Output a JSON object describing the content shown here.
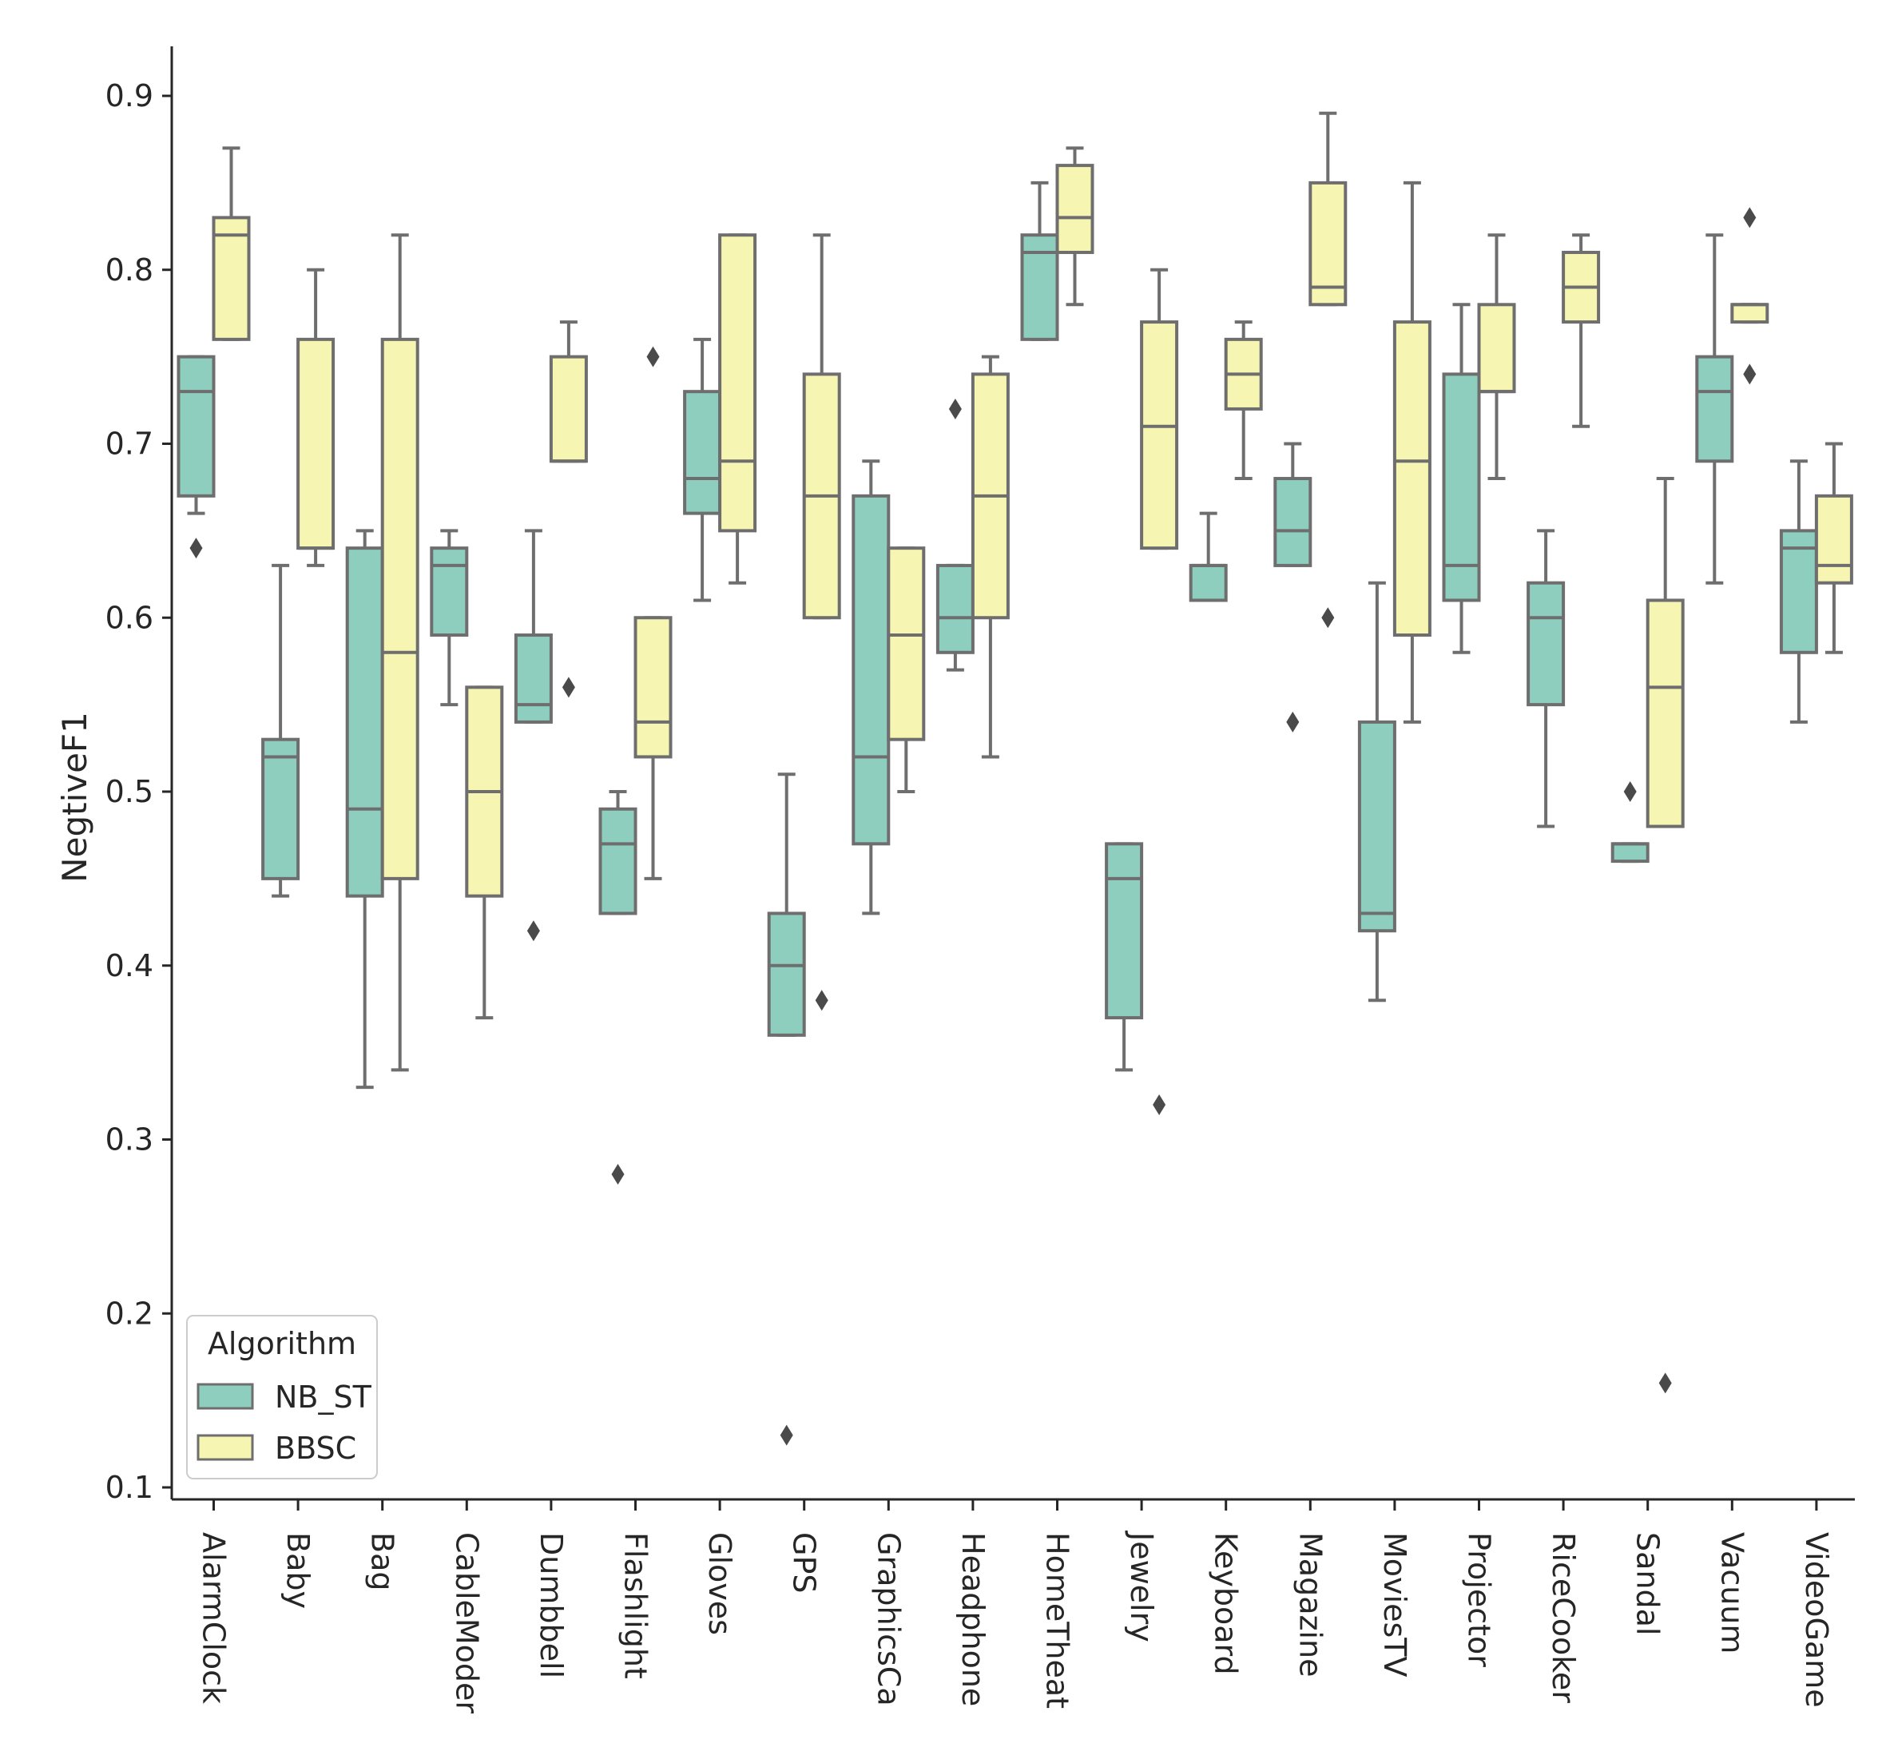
{
  "chart_data": {
    "type": "boxplot",
    "title": "",
    "xlabel": "",
    "ylabel": "NegtiveF1",
    "ylim": [
      0.09,
      0.93
    ],
    "yticks": [
      0.1,
      0.2,
      0.3,
      0.4,
      0.5,
      0.6,
      0.7,
      0.8,
      0.9
    ],
    "ytick_labels": [
      "0.1",
      "0.2",
      "0.3",
      "0.4",
      "0.5",
      "0.6",
      "0.7",
      "0.8",
      "0.9"
    ],
    "categories": [
      "AlarmClock",
      "Baby",
      "Bag",
      "CableModer",
      "Dumbbell",
      "Flashlight",
      "Gloves",
      "GPS",
      "GraphicsCa",
      "Headphone",
      "HomeTheat",
      "Jewelry",
      "Keyboard",
      "Magazine",
      "MoviesTV",
      "Projector",
      "RiceCooker",
      "Sandal",
      "Vacuum",
      "VideoGame"
    ],
    "legend": {
      "title": "Algorithm",
      "position": "lower-left"
    },
    "series": [
      {
        "name": "NB_ST",
        "color": "#8dcebf",
        "boxes": [
          {
            "whislo": 0.66,
            "q1": 0.67,
            "med": 0.73,
            "q3": 0.75,
            "whishi": 0.75,
            "fliers": [
              0.64
            ]
          },
          {
            "whislo": 0.44,
            "q1": 0.45,
            "med": 0.52,
            "q3": 0.53,
            "whishi": 0.63,
            "fliers": []
          },
          {
            "whislo": 0.33,
            "q1": 0.44,
            "med": 0.49,
            "q3": 0.64,
            "whishi": 0.65,
            "fliers": []
          },
          {
            "whislo": 0.55,
            "q1": 0.59,
            "med": 0.63,
            "q3": 0.64,
            "whishi": 0.65,
            "fliers": []
          },
          {
            "whislo": 0.54,
            "q1": 0.54,
            "med": 0.55,
            "q3": 0.59,
            "whishi": 0.65,
            "fliers": [
              0.42
            ]
          },
          {
            "whislo": 0.43,
            "q1": 0.43,
            "med": 0.47,
            "q3": 0.49,
            "whishi": 0.5,
            "fliers": [
              0.28
            ]
          },
          {
            "whislo": 0.61,
            "q1": 0.66,
            "med": 0.68,
            "q3": 0.73,
            "whishi": 0.76,
            "fliers": []
          },
          {
            "whislo": 0.36,
            "q1": 0.36,
            "med": 0.4,
            "q3": 0.43,
            "whishi": 0.51,
            "fliers": [
              0.13
            ]
          },
          {
            "whislo": 0.43,
            "q1": 0.47,
            "med": 0.52,
            "q3": 0.67,
            "whishi": 0.69,
            "fliers": []
          },
          {
            "whislo": 0.57,
            "q1": 0.58,
            "med": 0.6,
            "q3": 0.63,
            "whishi": 0.63,
            "fliers": [
              0.72
            ]
          },
          {
            "whislo": 0.76,
            "q1": 0.76,
            "med": 0.81,
            "q3": 0.82,
            "whishi": 0.85,
            "fliers": []
          },
          {
            "whislo": 0.34,
            "q1": 0.37,
            "med": 0.45,
            "q3": 0.47,
            "whishi": 0.47,
            "fliers": []
          },
          {
            "whislo": 0.61,
            "q1": 0.61,
            "med": 0.63,
            "q3": 0.63,
            "whishi": 0.66,
            "fliers": []
          },
          {
            "whislo": 0.63,
            "q1": 0.63,
            "med": 0.65,
            "q3": 0.68,
            "whishi": 0.7,
            "fliers": [
              0.54
            ]
          },
          {
            "whislo": 0.38,
            "q1": 0.42,
            "med": 0.43,
            "q3": 0.54,
            "whishi": 0.62,
            "fliers": []
          },
          {
            "whislo": 0.58,
            "q1": 0.61,
            "med": 0.63,
            "q3": 0.74,
            "whishi": 0.78,
            "fliers": []
          },
          {
            "whislo": 0.48,
            "q1": 0.55,
            "med": 0.6,
            "q3": 0.62,
            "whishi": 0.65,
            "fliers": []
          },
          {
            "whislo": 0.46,
            "q1": 0.46,
            "med": 0.47,
            "q3": 0.47,
            "whishi": 0.47,
            "fliers": [
              0.5
            ]
          },
          {
            "whislo": 0.62,
            "q1": 0.69,
            "med": 0.73,
            "q3": 0.75,
            "whishi": 0.82,
            "fliers": []
          },
          {
            "whislo": 0.54,
            "q1": 0.58,
            "med": 0.64,
            "q3": 0.65,
            "whishi": 0.69,
            "fliers": []
          }
        ]
      },
      {
        "name": "BBSC",
        "color": "#f7f5b2",
        "boxes": [
          {
            "whislo": 0.76,
            "q1": 0.76,
            "med": 0.82,
            "q3": 0.83,
            "whishi": 0.87,
            "fliers": []
          },
          {
            "whislo": 0.63,
            "q1": 0.64,
            "med": 0.64,
            "q3": 0.76,
            "whishi": 0.8,
            "fliers": []
          },
          {
            "whislo": 0.34,
            "q1": 0.45,
            "med": 0.58,
            "q3": 0.76,
            "whishi": 0.82,
            "fliers": []
          },
          {
            "whislo": 0.37,
            "q1": 0.44,
            "med": 0.5,
            "q3": 0.56,
            "whishi": 0.56,
            "fliers": []
          },
          {
            "whislo": 0.69,
            "q1": 0.69,
            "med": 0.69,
            "q3": 0.75,
            "whishi": 0.77,
            "fliers": [
              0.56
            ]
          },
          {
            "whislo": 0.45,
            "q1": 0.52,
            "med": 0.54,
            "q3": 0.6,
            "whishi": 0.6,
            "fliers": [
              0.75
            ]
          },
          {
            "whislo": 0.62,
            "q1": 0.65,
            "med": 0.69,
            "q3": 0.82,
            "whishi": 0.82,
            "fliers": []
          },
          {
            "whislo": 0.6,
            "q1": 0.6,
            "med": 0.67,
            "q3": 0.74,
            "whishi": 0.82,
            "fliers": [
              0.38
            ]
          },
          {
            "whislo": 0.5,
            "q1": 0.53,
            "med": 0.59,
            "q3": 0.64,
            "whishi": 0.64,
            "fliers": []
          },
          {
            "whislo": 0.52,
            "q1": 0.6,
            "med": 0.67,
            "q3": 0.74,
            "whishi": 0.75,
            "fliers": []
          },
          {
            "whislo": 0.78,
            "q1": 0.81,
            "med": 0.83,
            "q3": 0.86,
            "whishi": 0.87,
            "fliers": []
          },
          {
            "whislo": 0.64,
            "q1": 0.64,
            "med": 0.71,
            "q3": 0.77,
            "whishi": 0.8,
            "fliers": [
              0.32
            ]
          },
          {
            "whislo": 0.68,
            "q1": 0.72,
            "med": 0.74,
            "q3": 0.76,
            "whishi": 0.77,
            "fliers": []
          },
          {
            "whislo": 0.78,
            "q1": 0.78,
            "med": 0.79,
            "q3": 0.85,
            "whishi": 0.89,
            "fliers": [
              0.6
            ]
          },
          {
            "whislo": 0.54,
            "q1": 0.59,
            "med": 0.69,
            "q3": 0.77,
            "whishi": 0.85,
            "fliers": []
          },
          {
            "whislo": 0.68,
            "q1": 0.73,
            "med": 0.73,
            "q3": 0.78,
            "whishi": 0.82,
            "fliers": []
          },
          {
            "whislo": 0.71,
            "q1": 0.77,
            "med": 0.79,
            "q3": 0.81,
            "whishi": 0.82,
            "fliers": []
          },
          {
            "whislo": 0.48,
            "q1": 0.48,
            "med": 0.56,
            "q3": 0.61,
            "whishi": 0.68,
            "fliers": [
              0.16
            ]
          },
          {
            "whislo": 0.77,
            "q1": 0.77,
            "med": 0.78,
            "q3": 0.78,
            "whishi": 0.78,
            "fliers": [
              0.83,
              0.74
            ]
          },
          {
            "whislo": 0.58,
            "q1": 0.62,
            "med": 0.63,
            "q3": 0.67,
            "whishi": 0.7,
            "fliers": []
          }
        ]
      }
    ]
  }
}
